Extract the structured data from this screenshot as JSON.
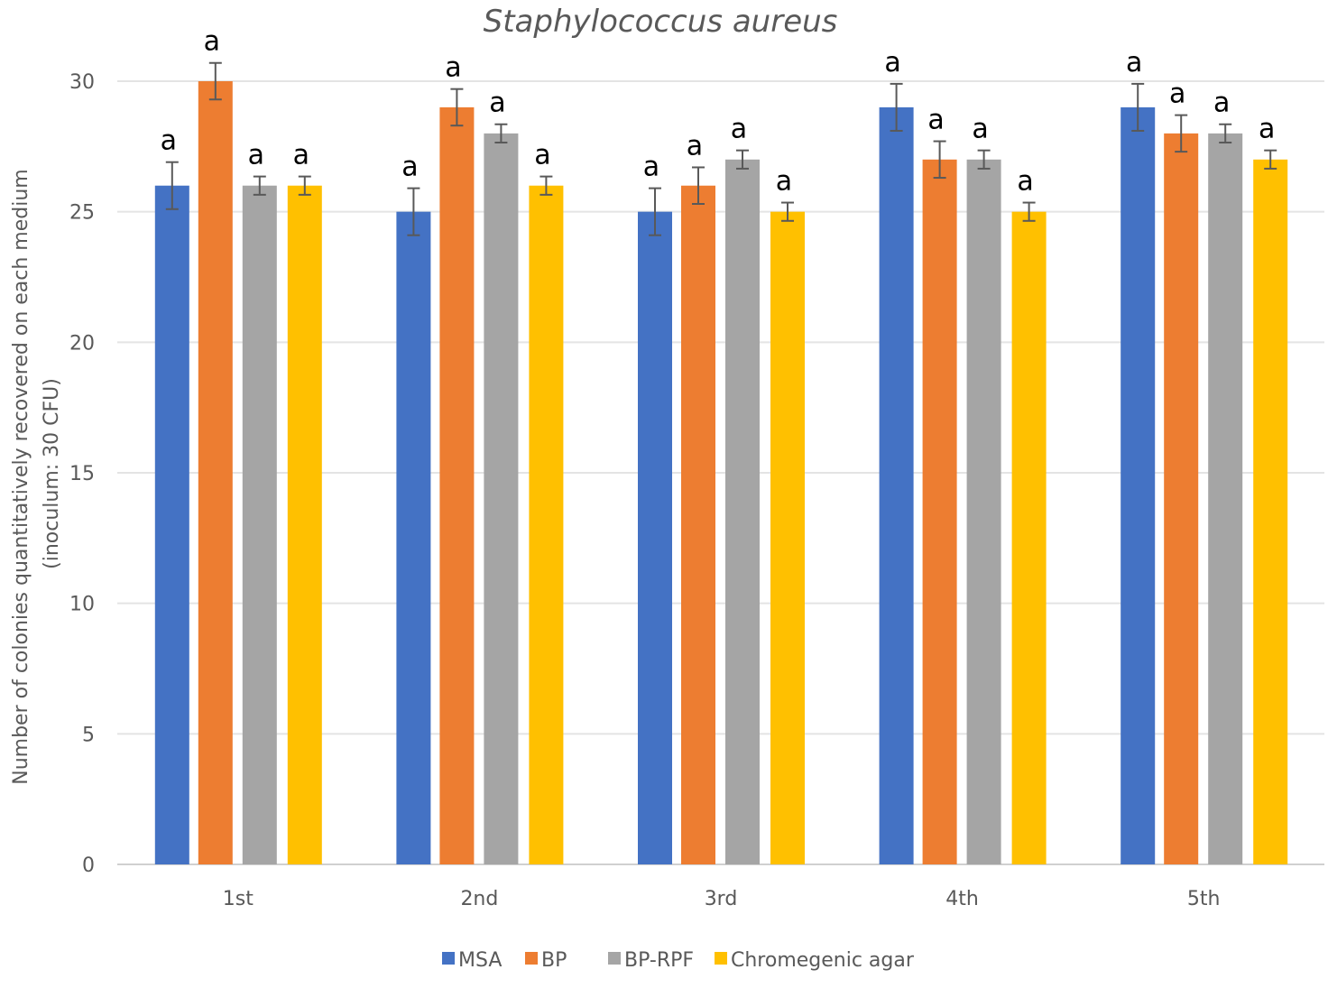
{
  "chart_data": {
    "type": "bar",
    "title": "Staphylococcus aureus",
    "xlabel": "",
    "ylabel": "Number of colonies quantitatively recovered on each medium (inoculum: 30 CFU)",
    "ylabel_lines": [
      "Number of colonies quantitatively recovered on each medium",
      "(inoculum: 30 CFU)"
    ],
    "ylim": [
      0,
      30
    ],
    "yticks": [
      0,
      5,
      10,
      15,
      20,
      25,
      30
    ],
    "grid": true,
    "legend_position": "bottom",
    "categories": [
      "1st",
      "2nd",
      "3rd",
      "4th",
      "5th"
    ],
    "series": [
      {
        "name": "MSA",
        "color": "#4472C4",
        "values": [
          26,
          25,
          25,
          29,
          29
        ],
        "errors": [
          0.9,
          0.9,
          0.9,
          0.9,
          0.9
        ],
        "labels": [
          "a",
          "a",
          "a",
          "a",
          "a"
        ]
      },
      {
        "name": "BP",
        "color": "#ED7D31",
        "values": [
          30,
          29,
          26,
          27,
          28
        ],
        "errors": [
          0.7,
          0.7,
          0.7,
          0.7,
          0.7
        ],
        "labels": [
          "a",
          "a",
          "a",
          "a",
          "a"
        ]
      },
      {
        "name": "BP-RPF",
        "color": "#A5A5A5",
        "values": [
          26,
          28,
          27,
          27,
          28
        ],
        "errors": [
          0.35,
          0.35,
          0.35,
          0.35,
          0.35
        ],
        "labels": [
          "a",
          "a",
          "a",
          "a",
          "a"
        ]
      },
      {
        "name": "Chromegenic agar",
        "color": "#FFC000",
        "values": [
          26,
          26,
          25,
          25,
          27
        ],
        "errors": [
          0.35,
          0.35,
          0.35,
          0.35,
          0.35
        ],
        "labels": [
          "a",
          "a",
          "a",
          "a",
          "a"
        ]
      }
    ]
  }
}
